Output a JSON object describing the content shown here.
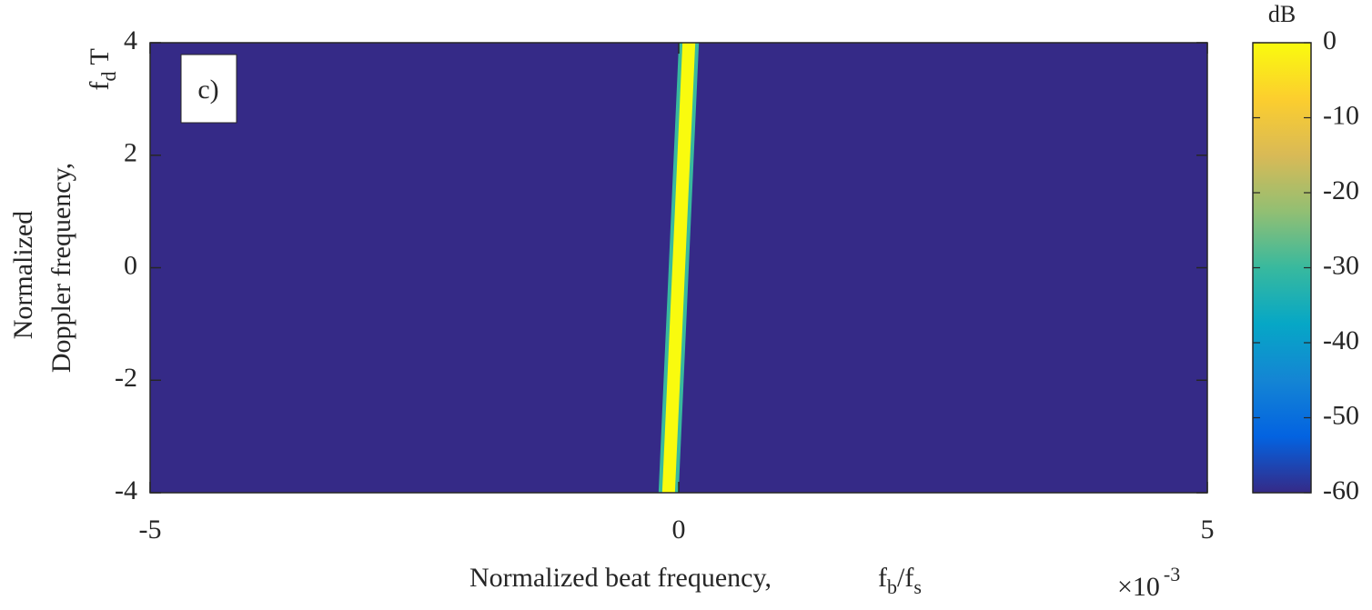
{
  "chart_data": {
    "type": "heatmap",
    "annotation": "c)",
    "x_label": "Normalized beat frequency,",
    "x_symbol": [
      {
        "text": "f"
      },
      {
        "text": "b",
        "sub": true
      },
      {
        "text": "/f"
      },
      {
        "text": "s",
        "sub": true
      }
    ],
    "x_multiplier": {
      "base": "×10",
      "exponent": "-3"
    },
    "y_label": [
      "Normalized",
      "Doppler frequency,"
    ],
    "y_symbol": [
      {
        "text": "f"
      },
      {
        "text": "d",
        "sub": true
      },
      {
        "text": " T"
      }
    ],
    "colorbar_label": "dB",
    "xlim": [
      -5,
      5
    ],
    "xticks": [
      -5,
      0,
      5
    ],
    "ylim": [
      -4,
      4
    ],
    "yticks": [
      -4,
      -2,
      0,
      2,
      4
    ],
    "clim": [
      -60,
      0
    ],
    "cticks": [
      -60,
      -50,
      -40,
      -30,
      -20,
      -10,
      0
    ],
    "colormap": [
      "#352a87",
      "#0363e1",
      "#1485d4",
      "#06a7c6",
      "#38b99e",
      "#92bf73",
      "#d9ba56",
      "#fcce2e",
      "#f9fb0e"
    ],
    "background_level": -60,
    "ridge": {
      "x": [
        -0.1,
        0.1
      ],
      "y": [
        -4,
        4
      ],
      "level": 0
    }
  }
}
